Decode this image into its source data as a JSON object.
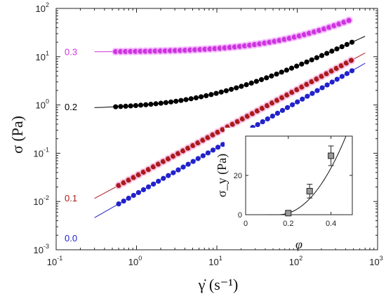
{
  "chart_data": [
    {
      "type": "scatter",
      "title": "",
      "xlabel": "γ̇ (s⁻¹)",
      "ylabel": "σ (Pa)",
      "x_scale": "log",
      "y_scale": "log",
      "xlim": [
        0.1,
        1000
      ],
      "ylim": [
        0.001,
        100
      ],
      "grid": false,
      "x_ticks": [
        "10^-1",
        "10^0",
        "10^1",
        "10^2",
        "10^3"
      ],
      "y_ticks": [
        "10^-3",
        "10^-2",
        "10^-1",
        "10^0",
        "10^1",
        "10^2"
      ],
      "series": [
        {
          "name": "0.3",
          "color": "#cc33dd",
          "halo": "#f2a6ff",
          "x_range": [
            0.55,
            440
          ],
          "fit_x_range": [
            0.3,
            440
          ],
          "tau_y": 12.5,
          "k": 0.38,
          "n": 0.78
        },
        {
          "name": "0.2",
          "color": "#000000",
          "halo": "",
          "x_range": [
            0.55,
            480
          ],
          "fit_x_range": [
            0.3,
            700
          ],
          "tau_y": 0.82,
          "k": 0.155,
          "n": 0.78
        },
        {
          "name": "0.1",
          "color": "#aa1a1a",
          "halo": "#f5b3dd",
          "x_range": [
            0.6,
            470
          ],
          "fit_x_range": [
            0.3,
            700
          ],
          "tau_y": 0,
          "k": 0.034,
          "n": 0.895
        },
        {
          "name": "0.0",
          "color": "#2222cc",
          "halo": "",
          "x_range": [
            0.6,
            480
          ],
          "fit_x_range": [
            0.3,
            700
          ],
          "tau_y": 0,
          "k": 0.0145,
          "n": 0.95
        }
      ]
    },
    {
      "type": "scatter",
      "title": "",
      "xlabel": "φ",
      "ylabel": "σ_y (Pa)",
      "xlim": [
        0,
        0.5
      ],
      "ylim": [
        0,
        40
      ],
      "x_ticks": [
        "0",
        "0.2",
        "0.4"
      ],
      "y_ticks": [
        "0",
        "20"
      ],
      "points": [
        {
          "x": 0.2,
          "y": 0.8,
          "err": 0.3
        },
        {
          "x": 0.3,
          "y": 12,
          "err": 3.5
        },
        {
          "x": 0.4,
          "y": 30,
          "err": 5
        }
      ],
      "fit": {
        "type": "power",
        "x0": 0.15,
        "a": 437,
        "p": 2.1
      }
    }
  ]
}
